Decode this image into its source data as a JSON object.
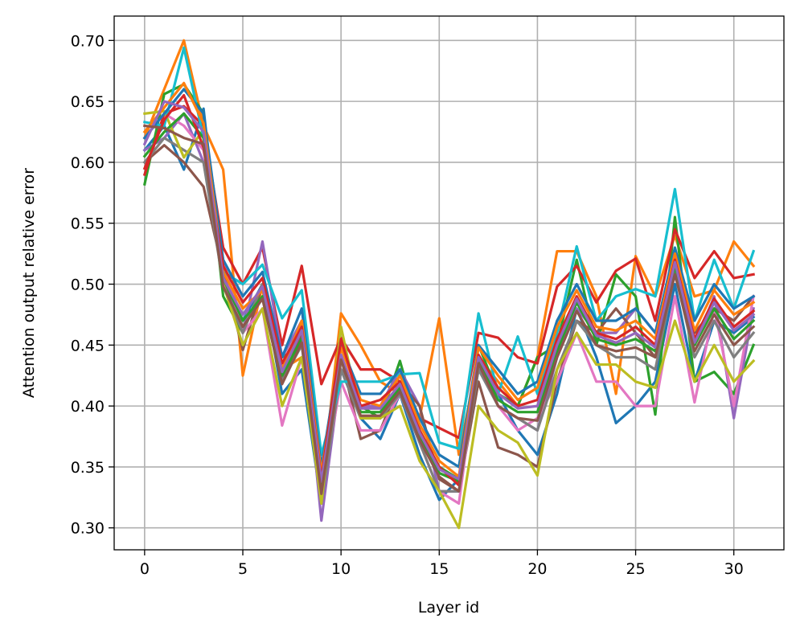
{
  "chart_data": {
    "type": "line",
    "title": "",
    "xlabel": "Layer id",
    "ylabel": "Attention output relative error",
    "xlim": [
      -1.55,
      32.55
    ],
    "ylim": [
      0.282,
      0.72
    ],
    "xticks": [
      0,
      5,
      10,
      15,
      20,
      25,
      30
    ],
    "yticks": [
      0.3,
      0.35,
      0.4,
      0.45,
      0.5,
      0.55,
      0.6,
      0.65,
      0.7
    ],
    "ytick_labels": [
      "0.30",
      "0.35",
      "0.40",
      "0.45",
      "0.50",
      "0.55",
      "0.60",
      "0.65",
      "0.70"
    ],
    "grid": true,
    "legend": "none",
    "colors": [
      "#1f77b4",
      "#ff7f0e",
      "#2ca02c",
      "#d62728",
      "#9467bd",
      "#8c564b",
      "#e377c2",
      "#7f7f7f",
      "#bcbd22",
      "#17becf"
    ],
    "x": [
      0,
      1,
      2,
      3,
      4,
      5,
      6,
      7,
      8,
      9,
      10,
      11,
      12,
      13,
      14,
      15,
      16,
      17,
      18,
      19,
      20,
      21,
      22,
      23,
      24,
      25,
      26,
      27,
      28,
      29,
      30,
      31
    ],
    "series": [
      {
        "values": [
          0.61,
          0.63,
          0.594,
          0.644,
          0.5,
          0.47,
          0.5,
          0.41,
          0.43,
          0.32,
          0.43,
          0.39,
          0.373,
          0.41,
          0.36,
          0.323,
          0.34,
          0.43,
          0.41,
          0.38,
          0.36,
          0.41,
          0.48,
          0.44,
          0.386,
          0.4,
          0.42,
          0.5,
          0.42,
          0.47,
          0.46,
          0.473
        ]
      },
      {
        "values": [
          0.62,
          0.66,
          0.7,
          0.63,
          0.594,
          0.425,
          0.5,
          0.43,
          0.44,
          0.33,
          0.476,
          0.45,
          0.42,
          0.41,
          0.39,
          0.472,
          0.36,
          0.44,
          0.42,
          0.4,
          0.44,
          0.527,
          0.527,
          0.49,
          0.41,
          0.523,
          0.49,
          0.54,
          0.49,
          0.495,
          0.535,
          0.515
        ]
      },
      {
        "values": [
          0.582,
          0.656,
          0.664,
          0.64,
          0.49,
          0.46,
          0.5,
          0.44,
          0.45,
          0.34,
          0.44,
          0.4,
          0.39,
          0.437,
          0.38,
          0.35,
          0.34,
          0.45,
          0.41,
          0.4,
          0.44,
          0.45,
          0.52,
          0.45,
          0.508,
          0.49,
          0.393,
          0.555,
          0.42,
          0.428,
          0.41,
          0.45
        ]
      },
      {
        "values": [
          0.59,
          0.64,
          0.646,
          0.63,
          0.53,
          0.5,
          0.53,
          0.45,
          0.515,
          0.418,
          0.456,
          0.43,
          0.43,
          0.42,
          0.39,
          0.382,
          0.374,
          0.46,
          0.456,
          0.44,
          0.435,
          0.498,
          0.515,
          0.485,
          0.511,
          0.521,
          0.47,
          0.545,
          0.505,
          0.527,
          0.505,
          0.508
        ]
      },
      {
        "values": [
          0.61,
          0.62,
          0.64,
          0.6,
          0.51,
          0.46,
          0.535,
          0.44,
          0.47,
          0.306,
          0.43,
          0.4,
          0.4,
          0.43,
          0.4,
          0.33,
          0.33,
          0.44,
          0.4,
          0.39,
          0.38,
          0.44,
          0.48,
          0.46,
          0.46,
          0.48,
          0.46,
          0.52,
          0.45,
          0.49,
          0.39,
          0.48
        ]
      },
      {
        "values": [
          0.6,
          0.614,
          0.6,
          0.58,
          0.51,
          0.446,
          0.5,
          0.42,
          0.46,
          0.35,
          0.44,
          0.373,
          0.38,
          0.42,
          0.4,
          0.34,
          0.33,
          0.42,
          0.366,
          0.36,
          0.35,
          0.42,
          0.47,
          0.46,
          0.48,
          0.46,
          0.44,
          0.52,
          0.46,
          0.48,
          0.47,
          0.49
        ]
      },
      {
        "values": [
          0.62,
          0.64,
          0.63,
          0.61,
          0.52,
          0.46,
          0.48,
          0.384,
          0.44,
          0.33,
          0.42,
          0.38,
          0.38,
          0.41,
          0.37,
          0.33,
          0.32,
          0.44,
          0.4,
          0.38,
          0.39,
          0.42,
          0.46,
          0.42,
          0.42,
          0.4,
          0.4,
          0.49,
          0.403,
          0.48,
          0.4,
          0.49
        ]
      },
      {
        "values": [
          0.6,
          0.62,
          0.61,
          0.6,
          0.5,
          0.46,
          0.5,
          0.42,
          0.45,
          0.32,
          0.43,
          0.39,
          0.39,
          0.41,
          0.37,
          0.33,
          0.33,
          0.43,
          0.4,
          0.39,
          0.38,
          0.43,
          0.47,
          0.45,
          0.44,
          0.44,
          0.43,
          0.51,
          0.44,
          0.47,
          0.44,
          0.46
        ]
      },
      {
        "values": [
          0.64,
          0.642,
          0.604,
          0.627,
          0.5,
          0.45,
          0.48,
          0.4,
          0.44,
          0.32,
          0.465,
          0.39,
          0.39,
          0.4,
          0.355,
          0.33,
          0.3,
          0.4,
          0.38,
          0.37,
          0.343,
          0.43,
          0.46,
          0.434,
          0.434,
          0.42,
          0.415,
          0.47,
          0.42,
          0.45,
          0.42,
          0.437
        ]
      },
      {
        "values": [
          0.633,
          0.63,
          0.694,
          0.62,
          0.51,
          0.5,
          0.516,
          0.472,
          0.495,
          0.36,
          0.42,
          0.42,
          0.42,
          0.426,
          0.427,
          0.37,
          0.365,
          0.476,
          0.41,
          0.457,
          0.41,
          0.46,
          0.531,
          0.47,
          0.49,
          0.496,
          0.49,
          0.578,
          0.47,
          0.52,
          0.48,
          0.527
        ]
      },
      {
        "values": [
          0.62,
          0.64,
          0.66,
          0.64,
          0.52,
          0.49,
          0.51,
          0.44,
          0.48,
          0.35,
          0.45,
          0.41,
          0.41,
          0.43,
          0.39,
          0.36,
          0.35,
          0.45,
          0.43,
          0.41,
          0.42,
          0.47,
          0.5,
          0.47,
          0.47,
          0.48,
          0.46,
          0.53,
          0.47,
          0.5,
          0.48,
          0.49
        ]
      },
      {
        "values": [
          0.625,
          0.645,
          0.665,
          0.632,
          0.51,
          0.48,
          0.495,
          0.43,
          0.47,
          0.345,
          0.448,
          0.405,
          0.4,
          0.425,
          0.385,
          0.355,
          0.342,
          0.448,
          0.425,
          0.405,
          0.415,
          0.465,
          0.495,
          0.465,
          0.462,
          0.47,
          0.455,
          0.525,
          0.462,
          0.495,
          0.475,
          0.485
        ]
      },
      {
        "values": [
          0.605,
          0.625,
          0.64,
          0.62,
          0.505,
          0.47,
          0.49,
          0.425,
          0.455,
          0.335,
          0.44,
          0.395,
          0.395,
          0.415,
          0.375,
          0.345,
          0.338,
          0.438,
          0.405,
          0.395,
          0.395,
          0.445,
          0.485,
          0.455,
          0.45,
          0.455,
          0.445,
          0.515,
          0.45,
          0.48,
          0.455,
          0.47
        ]
      },
      {
        "values": [
          0.595,
          0.635,
          0.655,
          0.612,
          0.515,
          0.485,
          0.505,
          0.435,
          0.465,
          0.34,
          0.455,
          0.4,
          0.405,
          0.42,
          0.38,
          0.35,
          0.335,
          0.442,
          0.415,
          0.4,
          0.405,
          0.455,
          0.49,
          0.46,
          0.455,
          0.465,
          0.45,
          0.52,
          0.455,
          0.488,
          0.465,
          0.478
        ]
      },
      {
        "values": [
          0.615,
          0.65,
          0.645,
          0.625,
          0.505,
          0.475,
          0.498,
          0.428,
          0.462,
          0.338,
          0.442,
          0.398,
          0.398,
          0.418,
          0.378,
          0.348,
          0.34,
          0.44,
          0.41,
          0.398,
          0.4,
          0.45,
          0.488,
          0.458,
          0.452,
          0.46,
          0.448,
          0.518,
          0.452,
          0.485,
          0.462,
          0.475
        ]
      },
      {
        "values": [
          0.63,
          0.628,
          0.62,
          0.615,
          0.498,
          0.465,
          0.488,
          0.418,
          0.452,
          0.328,
          0.438,
          0.392,
          0.392,
          0.412,
          0.372,
          0.342,
          0.33,
          0.435,
          0.4,
          0.39,
          0.388,
          0.44,
          0.478,
          0.45,
          0.445,
          0.448,
          0.44,
          0.508,
          0.445,
          0.475,
          0.45,
          0.465
        ]
      }
    ]
  }
}
